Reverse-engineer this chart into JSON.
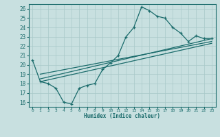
{
  "bg_color": "#c8e0e0",
  "line_color": "#1a6b6b",
  "grid_color": "#a8c8c8",
  "xlabel": "Humidex (Indice chaleur)",
  "xlim": [
    -0.5,
    23.5
  ],
  "ylim": [
    15.5,
    26.5
  ],
  "xticks": [
    0,
    1,
    2,
    3,
    4,
    5,
    6,
    7,
    8,
    9,
    10,
    11,
    12,
    13,
    14,
    15,
    16,
    17,
    18,
    19,
    20,
    21,
    22,
    23
  ],
  "yticks": [
    16,
    17,
    18,
    19,
    20,
    21,
    22,
    23,
    24,
    25,
    26
  ],
  "main_x": [
    0,
    1,
    2,
    3,
    4,
    5,
    6,
    7,
    8,
    9,
    10,
    11,
    12,
    13,
    14,
    15,
    16,
    17,
    18,
    19,
    20,
    21,
    22,
    23
  ],
  "main_y": [
    20.5,
    18.2,
    18.0,
    17.5,
    16.0,
    15.8,
    17.5,
    17.8,
    18.0,
    19.5,
    20.2,
    21.0,
    23.0,
    24.0,
    26.2,
    25.8,
    25.2,
    25.0,
    24.0,
    23.4,
    22.5,
    23.1,
    22.8,
    22.8
  ],
  "trend1_x": [
    1,
    23
  ],
  "trend1_y": [
    18.5,
    22.8
  ],
  "trend2_x": [
    1,
    23
  ],
  "trend2_y": [
    18.2,
    22.3
  ],
  "trend3_x": [
    1,
    23
  ],
  "trend3_y": [
    19.0,
    22.5
  ]
}
